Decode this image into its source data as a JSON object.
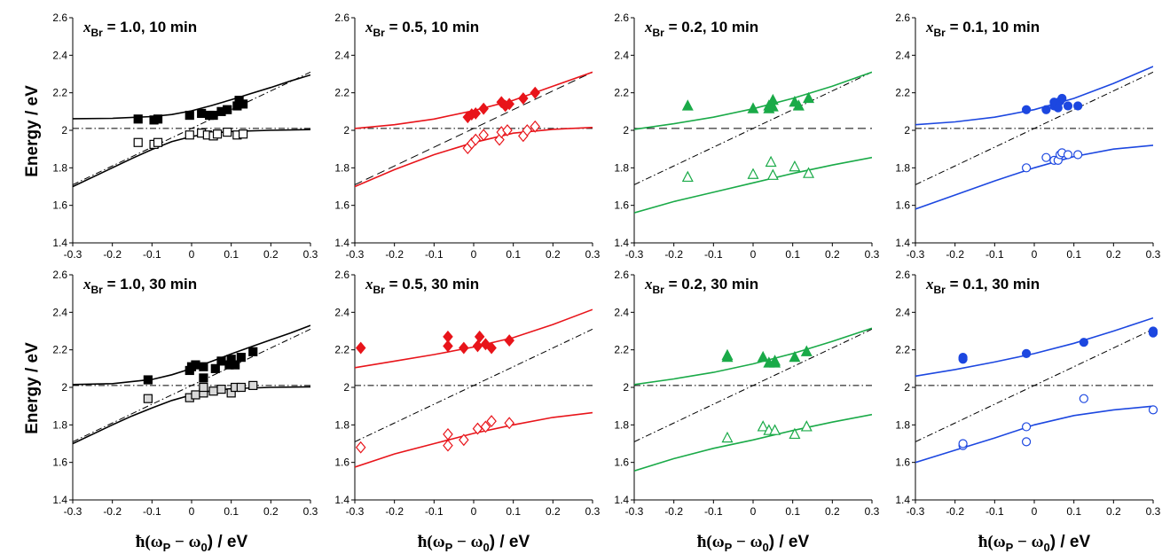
{
  "figure": {
    "ylabel": "Energy / eV",
    "xlabel_parts": [
      "ħ(ω",
      "P",
      " − ω",
      "0",
      ") / eV"
    ]
  },
  "axes_common": {
    "xlim": [
      -0.3,
      0.3
    ],
    "ylim": [
      1.4,
      2.6
    ],
    "xticks": [
      "-0.3",
      "-0.2",
      "-0.1",
      "0",
      "0.1",
      "0.2",
      "0.3"
    ],
    "yticks": [
      "1.4",
      "1.6",
      "1.8",
      "2",
      "2.2",
      "2.4",
      "2.6"
    ],
    "exciton_energy": 2.01,
    "diagonal_intercept": 2.01
  },
  "chart_data": [
    {
      "type": "scatter",
      "title_prefix": "x",
      "title_sub": "Br",
      "title_rest": " = 1.0, 10 min",
      "color": "#000000",
      "upper_fill": "#000000",
      "lower_fill": "#ffffff",
      "lower_stroke": "#000000",
      "marker": "square",
      "diag_style": "dashdot",
      "hline_style": "dashdot",
      "upper": [
        [
          -0.135,
          2.06
        ],
        [
          -0.095,
          2.055
        ],
        [
          -0.085,
          2.06
        ],
        [
          -0.005,
          2.08
        ],
        [
          0.025,
          2.09
        ],
        [
          0.045,
          2.08
        ],
        [
          0.055,
          2.08
        ],
        [
          0.075,
          2.1
        ],
        [
          0.09,
          2.11
        ],
        [
          0.115,
          2.13
        ],
        [
          0.12,
          2.16
        ],
        [
          0.13,
          2.14
        ]
      ],
      "lower": [
        [
          -0.135,
          1.935
        ],
        [
          -0.095,
          1.925
        ],
        [
          -0.085,
          1.935
        ],
        [
          -0.005,
          1.975
        ],
        [
          0.025,
          1.985
        ],
        [
          0.04,
          1.975
        ],
        [
          0.055,
          1.97
        ],
        [
          0.065,
          1.98
        ],
        [
          0.09,
          1.99
        ],
        [
          0.115,
          1.975
        ],
        [
          0.13,
          1.98
        ]
      ],
      "fit_upper": [
        [
          -0.3,
          2.062
        ],
        [
          -0.2,
          2.064
        ],
        [
          -0.1,
          2.073
        ],
        [
          -0.05,
          2.084
        ],
        [
          0,
          2.104
        ],
        [
          0.05,
          2.132
        ],
        [
          0.1,
          2.163
        ],
        [
          0.15,
          2.196
        ],
        [
          0.2,
          2.228
        ],
        [
          0.25,
          2.263
        ],
        [
          0.3,
          2.295
        ]
      ],
      "fit_lower": [
        [
          -0.3,
          1.7
        ],
        [
          -0.2,
          1.8
        ],
        [
          -0.15,
          1.85
        ],
        [
          -0.1,
          1.898
        ],
        [
          -0.05,
          1.94
        ],
        [
          0,
          1.967
        ],
        [
          0.05,
          1.985
        ],
        [
          0.1,
          1.994
        ],
        [
          0.2,
          2.0
        ],
        [
          0.3,
          2.004
        ]
      ]
    },
    {
      "type": "scatter",
      "title_prefix": "x",
      "title_sub": "Br",
      "title_rest": " = 0.5, 10 min",
      "color": "#e8141a",
      "upper_fill": "#e8141a",
      "lower_fill": "#ffffff",
      "lower_stroke": "#e8141a",
      "marker": "diamond",
      "diag_style": "dash",
      "hline_style": "dashdot",
      "upper": [
        [
          -0.015,
          2.07
        ],
        [
          -0.005,
          2.085
        ],
        [
          0.005,
          2.09
        ],
        [
          0.025,
          2.115
        ],
        [
          0.07,
          2.15
        ],
        [
          0.08,
          2.13
        ],
        [
          0.09,
          2.14
        ],
        [
          0.125,
          2.17
        ],
        [
          0.155,
          2.2
        ]
      ],
      "lower": [
        [
          -0.015,
          1.905
        ],
        [
          -0.005,
          1.93
        ],
        [
          0.005,
          1.95
        ],
        [
          0.025,
          1.975
        ],
        [
          0.065,
          1.95
        ],
        [
          0.07,
          1.99
        ],
        [
          0.085,
          2.0
        ],
        [
          0.125,
          1.97
        ],
        [
          0.135,
          2.0
        ],
        [
          0.155,
          2.02
        ]
      ],
      "fit_upper": [
        [
          -0.3,
          2.01
        ],
        [
          -0.2,
          2.03
        ],
        [
          -0.1,
          2.06
        ],
        [
          0,
          2.105
        ],
        [
          0.1,
          2.16
        ],
        [
          0.2,
          2.235
        ],
        [
          0.3,
          2.31
        ]
      ],
      "fit_lower": [
        [
          -0.3,
          1.7
        ],
        [
          -0.2,
          1.79
        ],
        [
          -0.1,
          1.87
        ],
        [
          0,
          1.935
        ],
        [
          0.1,
          1.985
        ],
        [
          0.2,
          2.005
        ],
        [
          0.3,
          2.015
        ]
      ]
    },
    {
      "type": "scatter",
      "title_prefix": "x",
      "title_sub": "Br",
      "title_rest": " = 0.2, 10 min",
      "color": "#1aaa48",
      "upper_fill": "#1aaa48",
      "lower_fill": "#ffffff",
      "lower_stroke": "#1aaa48",
      "marker": "triangle",
      "diag_style": "dashdot",
      "hline_style": "dash",
      "upper": [
        [
          -0.165,
          2.13
        ],
        [
          0.0,
          2.115
        ],
        [
          0.04,
          2.115
        ],
        [
          0.04,
          2.13
        ],
        [
          0.05,
          2.16
        ],
        [
          0.05,
          2.125
        ],
        [
          0.105,
          2.15
        ],
        [
          0.115,
          2.13
        ],
        [
          0.14,
          2.17
        ]
      ],
      "lower": [
        [
          -0.165,
          1.75
        ],
        [
          0.0,
          1.765
        ],
        [
          0.045,
          1.83
        ],
        [
          0.05,
          1.76
        ],
        [
          0.105,
          1.805
        ],
        [
          0.14,
          1.77
        ]
      ],
      "fit_upper": [
        [
          -0.3,
          2.005
        ],
        [
          -0.2,
          2.035
        ],
        [
          -0.1,
          2.07
        ],
        [
          0,
          2.115
        ],
        [
          0.1,
          2.17
        ],
        [
          0.2,
          2.235
        ],
        [
          0.3,
          2.31
        ]
      ],
      "fit_lower": [
        [
          -0.3,
          1.56
        ],
        [
          -0.2,
          1.62
        ],
        [
          -0.1,
          1.67
        ],
        [
          0,
          1.72
        ],
        [
          0.1,
          1.77
        ],
        [
          0.2,
          1.815
        ],
        [
          0.3,
          1.855
        ]
      ]
    },
    {
      "type": "scatter",
      "title_prefix": "x",
      "title_sub": "Br",
      "title_rest": " = 0.1, 10 min",
      "color": "#1c47e0",
      "upper_fill": "#1c47e0",
      "lower_fill": "#ffffff",
      "lower_stroke": "#1c47e0",
      "marker": "circle",
      "diag_style": "dashdot",
      "hline_style": "dashdot",
      "upper": [
        [
          -0.02,
          2.11
        ],
        [
          0.03,
          2.11
        ],
        [
          0.05,
          2.13
        ],
        [
          0.05,
          2.15
        ],
        [
          0.06,
          2.12
        ],
        [
          0.065,
          2.155
        ],
        [
          0.07,
          2.17
        ],
        [
          0.085,
          2.13
        ],
        [
          0.11,
          2.13
        ]
      ],
      "lower": [
        [
          -0.02,
          1.8
        ],
        [
          0.03,
          1.855
        ],
        [
          0.05,
          1.84
        ],
        [
          0.06,
          1.84
        ],
        [
          0.065,
          1.87
        ],
        [
          0.07,
          1.88
        ],
        [
          0.085,
          1.87
        ],
        [
          0.11,
          1.87
        ]
      ],
      "fit_upper": [
        [
          -0.3,
          2.03
        ],
        [
          -0.2,
          2.045
        ],
        [
          -0.1,
          2.07
        ],
        [
          0,
          2.11
        ],
        [
          0.1,
          2.17
        ],
        [
          0.2,
          2.25
        ],
        [
          0.3,
          2.34
        ]
      ],
      "fit_lower": [
        [
          -0.3,
          1.58
        ],
        [
          -0.2,
          1.655
        ],
        [
          -0.1,
          1.73
        ],
        [
          0,
          1.8
        ],
        [
          0.1,
          1.86
        ],
        [
          0.2,
          1.9
        ],
        [
          0.3,
          1.92
        ]
      ]
    },
    {
      "type": "scatter",
      "title_prefix": "x",
      "title_sub": "Br",
      "title_rest": " = 1.0, 30 min",
      "color": "#000000",
      "upper_fill": "#000000",
      "lower_fill": "#d9d9d9",
      "lower_stroke": "#000000",
      "marker": "square",
      "diag_style": "dashdot",
      "hline_style": "dashdot",
      "upper": [
        [
          -0.11,
          2.04
        ],
        [
          -0.005,
          2.09
        ],
        [
          0.0,
          2.11
        ],
        [
          0.01,
          2.12
        ],
        [
          0.03,
          2.11
        ],
        [
          0.03,
          2.05
        ],
        [
          0.06,
          2.1
        ],
        [
          0.075,
          2.14
        ],
        [
          0.095,
          2.12
        ],
        [
          0.1,
          2.15
        ],
        [
          0.11,
          2.12
        ],
        [
          0.125,
          2.16
        ],
        [
          0.155,
          2.19
        ]
      ],
      "lower": [
        [
          -0.11,
          1.94
        ],
        [
          -0.005,
          1.945
        ],
        [
          0.01,
          1.96
        ],
        [
          0.03,
          1.97
        ],
        [
          0.03,
          2.0
        ],
        [
          0.055,
          1.98
        ],
        [
          0.075,
          1.99
        ],
        [
          0.1,
          1.97
        ],
        [
          0.11,
          2.0
        ],
        [
          0.125,
          2.0
        ],
        [
          0.155,
          2.01
        ]
      ],
      "fit_upper": [
        [
          -0.3,
          2.015
        ],
        [
          -0.2,
          2.02
        ],
        [
          -0.1,
          2.042
        ],
        [
          -0.05,
          2.067
        ],
        [
          0,
          2.1
        ],
        [
          0.05,
          2.138
        ],
        [
          0.1,
          2.178
        ],
        [
          0.15,
          2.216
        ],
        [
          0.2,
          2.253
        ],
        [
          0.25,
          2.29
        ],
        [
          0.3,
          2.33
        ]
      ],
      "fit_lower": [
        [
          -0.3,
          1.7
        ],
        [
          -0.2,
          1.8
        ],
        [
          -0.15,
          1.848
        ],
        [
          -0.1,
          1.89
        ],
        [
          -0.05,
          1.93
        ],
        [
          0,
          1.96
        ],
        [
          0.05,
          1.982
        ],
        [
          0.1,
          1.993
        ],
        [
          0.2,
          2.0
        ],
        [
          0.3,
          2.003
        ]
      ]
    },
    {
      "type": "scatter",
      "title_prefix": "x",
      "title_sub": "Br",
      "title_rest": " = 0.5, 30 min",
      "color": "#e8141a",
      "upper_fill": "#e8141a",
      "lower_fill": "#ffffff",
      "lower_stroke": "#e8141a",
      "marker": "diamond",
      "diag_style": "dashdot",
      "hline_style": "dashdot",
      "upper": [
        [
          -0.285,
          2.21
        ],
        [
          -0.065,
          2.27
        ],
        [
          -0.065,
          2.22
        ],
        [
          -0.025,
          2.21
        ],
        [
          0.01,
          2.22
        ],
        [
          0.015,
          2.27
        ],
        [
          0.03,
          2.23
        ],
        [
          0.045,
          2.21
        ],
        [
          0.09,
          2.25
        ]
      ],
      "lower": [
        [
          -0.285,
          1.68
        ],
        [
          -0.065,
          1.75
        ],
        [
          -0.065,
          1.69
        ],
        [
          -0.025,
          1.72
        ],
        [
          0.01,
          1.78
        ],
        [
          0.03,
          1.79
        ],
        [
          0.045,
          1.82
        ],
        [
          0.09,
          1.81
        ]
      ],
      "fit_upper": [
        [
          -0.3,
          2.105
        ],
        [
          -0.2,
          2.14
        ],
        [
          -0.1,
          2.175
        ],
        [
          0,
          2.215
        ],
        [
          0.1,
          2.265
        ],
        [
          0.2,
          2.335
        ],
        [
          0.3,
          2.415
        ]
      ],
      "fit_lower": [
        [
          -0.3,
          1.575
        ],
        [
          -0.2,
          1.645
        ],
        [
          -0.1,
          1.7
        ],
        [
          0,
          1.755
        ],
        [
          0.1,
          1.8
        ],
        [
          0.2,
          1.84
        ],
        [
          0.3,
          1.865
        ]
      ]
    },
    {
      "type": "scatter",
      "title_prefix": "x",
      "title_sub": "Br",
      "title_rest": " = 0.2, 30 min",
      "color": "#1aaa48",
      "upper_fill": "#1aaa48",
      "lower_fill": "#ffffff",
      "lower_stroke": "#1aaa48",
      "marker": "triangle",
      "diag_style": "dashdot",
      "hline_style": "dashdot",
      "upper": [
        [
          -0.065,
          2.17
        ],
        [
          -0.065,
          2.16
        ],
        [
          0.025,
          2.16
        ],
        [
          0.04,
          2.13
        ],
        [
          0.055,
          2.14
        ],
        [
          0.055,
          2.13
        ],
        [
          0.105,
          2.16
        ],
        [
          0.135,
          2.19
        ]
      ],
      "lower": [
        [
          -0.065,
          1.73
        ],
        [
          0.025,
          1.79
        ],
        [
          0.04,
          1.77
        ],
        [
          0.055,
          1.77
        ],
        [
          0.105,
          1.75
        ],
        [
          0.135,
          1.79
        ]
      ],
      "fit_upper": [
        [
          -0.3,
          2.015
        ],
        [
          -0.2,
          2.045
        ],
        [
          -0.1,
          2.08
        ],
        [
          0,
          2.125
        ],
        [
          0.1,
          2.18
        ],
        [
          0.2,
          2.245
        ],
        [
          0.3,
          2.315
        ]
      ],
      "fit_lower": [
        [
          -0.3,
          1.555
        ],
        [
          -0.2,
          1.62
        ],
        [
          -0.1,
          1.675
        ],
        [
          0,
          1.72
        ],
        [
          0.1,
          1.77
        ],
        [
          0.2,
          1.815
        ],
        [
          0.3,
          1.855
        ]
      ]
    },
    {
      "type": "scatter",
      "title_prefix": "x",
      "title_sub": "Br",
      "title_rest": " = 0.1, 30 min",
      "color": "#1c47e0",
      "upper_fill": "#1c47e0",
      "lower_fill": "#ffffff",
      "lower_stroke": "#1c47e0",
      "marker": "circle",
      "diag_style": "dashdot",
      "hline_style": "dashdot",
      "upper": [
        [
          -0.18,
          2.15
        ],
        [
          -0.18,
          2.16
        ],
        [
          -0.02,
          2.18
        ],
        [
          0.125,
          2.24
        ],
        [
          0.3,
          2.29
        ],
        [
          0.3,
          2.3
        ]
      ],
      "lower": [
        [
          -0.18,
          1.69
        ],
        [
          -0.18,
          1.7
        ],
        [
          -0.02,
          1.79
        ],
        [
          -0.02,
          1.71
        ],
        [
          0.125,
          1.94
        ],
        [
          0.3,
          1.88
        ]
      ],
      "fit_upper": [
        [
          -0.3,
          2.06
        ],
        [
          -0.2,
          2.095
        ],
        [
          -0.1,
          2.135
        ],
        [
          0,
          2.18
        ],
        [
          0.1,
          2.235
        ],
        [
          0.2,
          2.3
        ],
        [
          0.3,
          2.37
        ]
      ],
      "fit_lower": [
        [
          -0.3,
          1.6
        ],
        [
          -0.2,
          1.665
        ],
        [
          -0.1,
          1.73
        ],
        [
          0,
          1.8
        ],
        [
          0.1,
          1.85
        ],
        [
          0.2,
          1.88
        ],
        [
          0.3,
          1.9
        ]
      ]
    }
  ]
}
